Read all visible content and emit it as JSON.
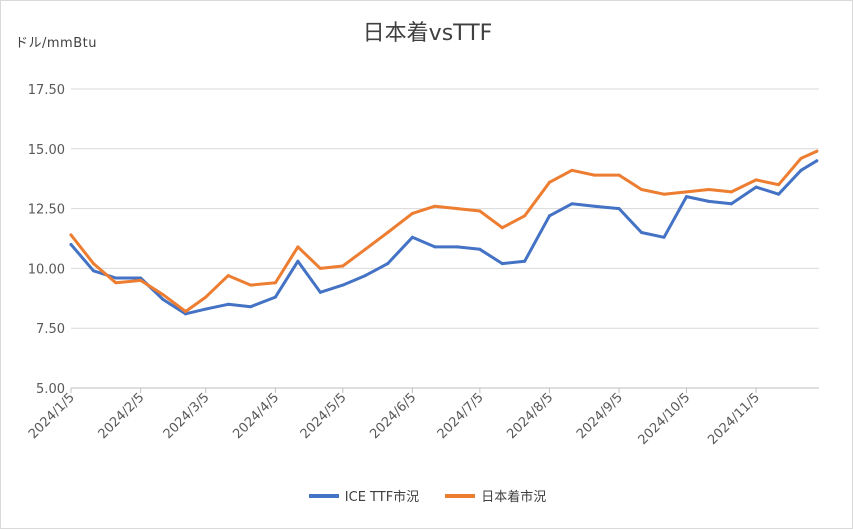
{
  "chart_data": {
    "type": "line",
    "title": "日本着vsTTF",
    "ylabel": "ドル/mmBtu",
    "xlabel": "",
    "ylim": [
      5.0,
      18.75
    ],
    "y_ticks": [
      "5.00",
      "7.50",
      "10.00",
      "12.50",
      "15.00",
      "17.50"
    ],
    "x_ticks": [
      "2024/1/5",
      "2024/2/5",
      "2024/3/5",
      "2024/4/5",
      "2024/5/5",
      "2024/6/5",
      "2024/7/5",
      "2024/8/5",
      "2024/9/5",
      "2024/10/5",
      "2024/11/5"
    ],
    "grid": "horizontal",
    "legend_position": "bottom",
    "x": [
      "2024/1/5",
      "2024/1/15",
      "2024/1/25",
      "2024/2/5",
      "2024/2/15",
      "2024/2/25",
      "2024/3/5",
      "2024/3/15",
      "2024/3/25",
      "2024/4/5",
      "2024/4/15",
      "2024/4/25",
      "2024/5/5",
      "2024/5/15",
      "2024/5/25",
      "2024/6/5",
      "2024/6/15",
      "2024/6/25",
      "2024/7/5",
      "2024/7/15",
      "2024/7/25",
      "2024/8/5",
      "2024/8/15",
      "2024/8/25",
      "2024/9/5",
      "2024/9/15",
      "2024/9/25",
      "2024/10/5",
      "2024/10/15",
      "2024/10/25",
      "2024/11/5",
      "2024/11/15",
      "2024/11/25",
      "2024/12/2"
    ],
    "series": [
      {
        "name": "ICE TTF市況",
        "color": "#4472c4",
        "values": [
          11.0,
          9.9,
          9.6,
          9.6,
          8.7,
          8.1,
          8.3,
          8.5,
          8.4,
          8.8,
          10.3,
          9.0,
          9.3,
          9.7,
          10.2,
          11.3,
          10.9,
          10.9,
          10.8,
          10.2,
          10.3,
          12.2,
          12.7,
          12.6,
          12.5,
          11.5,
          11.3,
          13.0,
          12.8,
          12.7,
          13.4,
          13.1,
          14.1,
          14.5
        ]
      },
      {
        "name": "日本着市況",
        "color": "#ed7d31",
        "values": [
          11.4,
          10.2,
          9.4,
          9.5,
          8.9,
          8.2,
          8.8,
          9.7,
          9.3,
          9.4,
          10.9,
          10.0,
          10.1,
          10.8,
          11.5,
          12.3,
          12.6,
          12.5,
          12.4,
          11.7,
          12.2,
          13.6,
          14.1,
          13.9,
          13.9,
          13.3,
          13.1,
          13.2,
          13.3,
          13.2,
          13.7,
          13.5,
          14.6,
          14.9
        ]
      }
    ]
  }
}
